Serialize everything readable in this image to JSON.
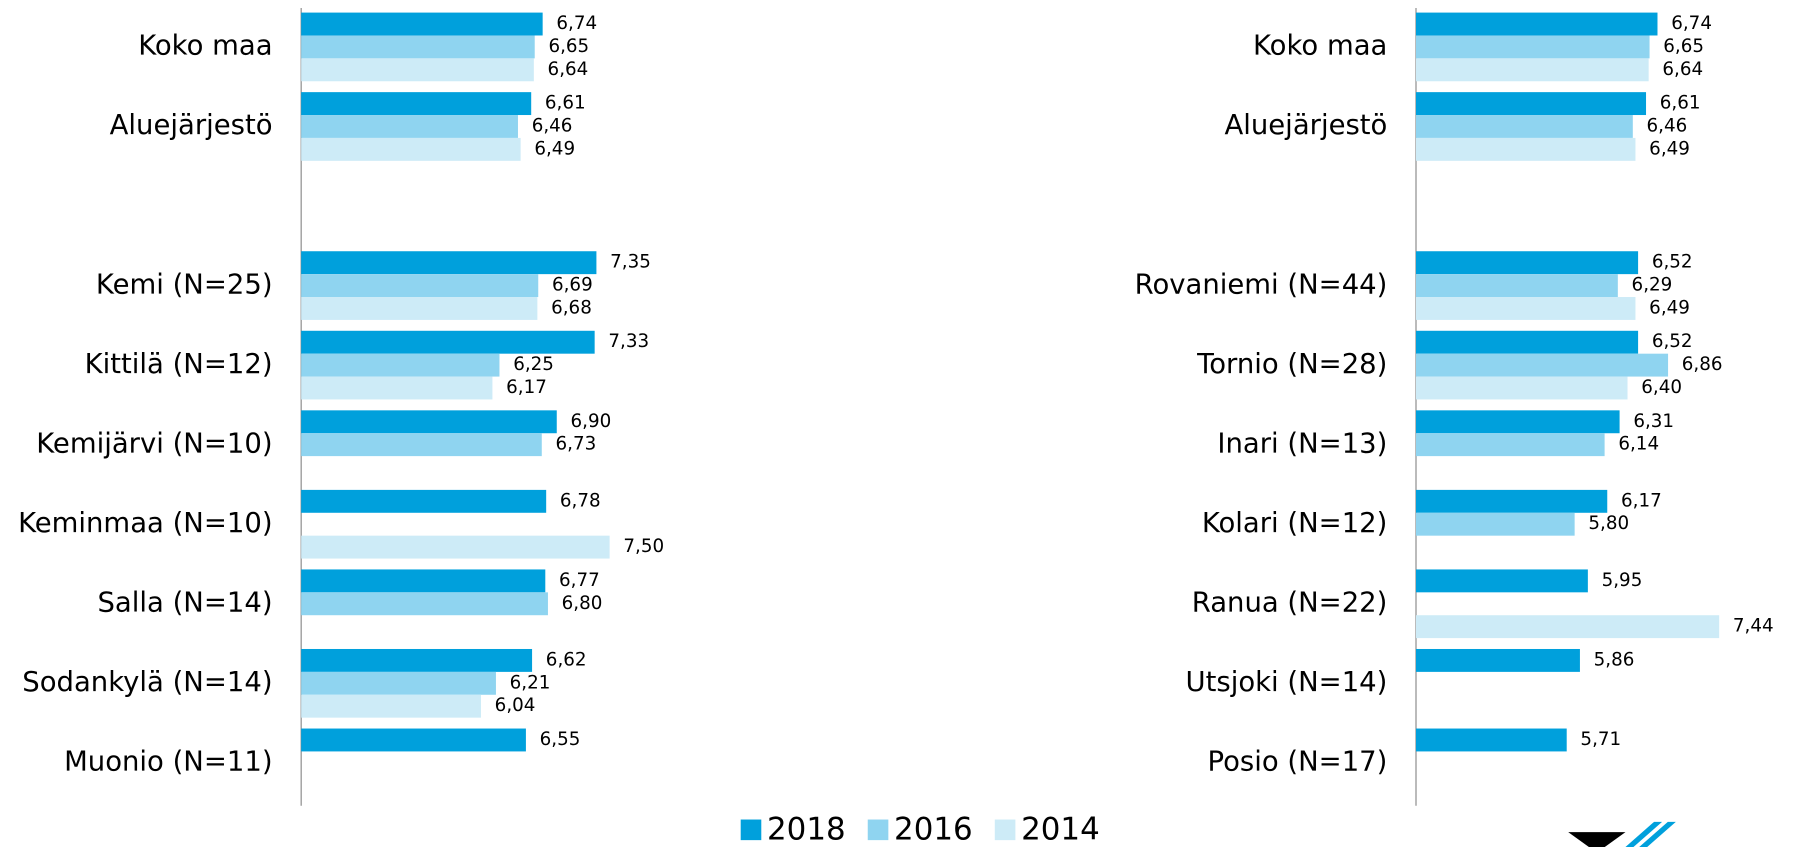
{
  "chart_data": [
    {
      "type": "bar",
      "orientation": "horizontal",
      "categories": [
        "Koko maa",
        "Aluejärjestö",
        null,
        "Kemi (N=25)",
        "Kittilä (N=12)",
        "Kemijärvi (N=10)",
        "Keminmaa (N=10)",
        "Salla (N=14)",
        "Sodankylä (N=14)",
        "Muonio (N=11)"
      ],
      "series": [
        {
          "name": "2018",
          "color": "#00a0dc",
          "values": [
            6.74,
            6.61,
            null,
            7.35,
            7.33,
            6.9,
            6.78,
            6.77,
            6.62,
            6.55
          ],
          "value_labels": [
            "6,74",
            "6,61",
            null,
            "7,35",
            "7,33",
            "6,90",
            "6,78",
            "6,77",
            "6,62",
            "6,55"
          ]
        },
        {
          "name": "2016",
          "color": "#8fd4f0",
          "values": [
            6.65,
            6.46,
            null,
            6.69,
            6.25,
            6.73,
            null,
            6.8,
            6.21,
            null
          ],
          "value_labels": [
            "6,65",
            "6,46",
            null,
            "6,69",
            "6,25",
            "6,73",
            null,
            "6,80",
            "6,21",
            null
          ]
        },
        {
          "name": "2014",
          "color": "#cdebf7",
          "values": [
            6.64,
            6.49,
            null,
            6.68,
            6.17,
            null,
            7.5,
            null,
            6.04,
            null
          ],
          "value_labels": [
            "6,64",
            "6,49",
            null,
            "6,68",
            "6,17",
            null,
            "7,50",
            null,
            "6,04",
            null
          ]
        }
      ],
      "xlim": [
        4,
        10
      ],
      "legend": "bottom"
    },
    {
      "type": "bar",
      "orientation": "horizontal",
      "categories": [
        "Koko maa",
        "Aluejärjestö",
        null,
        "Rovaniemi (N=44)",
        "Tornio (N=28)",
        "Inari (N=13)",
        "Kolari (N=12)",
        "Ranua (N=22)",
        "Utsjoki (N=14)",
        "Posio (N=17)"
      ],
      "series": [
        {
          "name": "2018",
          "color": "#00a0dc",
          "values": [
            6.74,
            6.61,
            null,
            6.52,
            6.52,
            6.31,
            6.17,
            5.95,
            5.86,
            5.71
          ],
          "value_labels": [
            "6,74",
            "6,61",
            null,
            "6,52",
            "6,52",
            "6,31",
            "6,17",
            "5,95",
            "5,86",
            "5,71"
          ]
        },
        {
          "name": "2016",
          "color": "#8fd4f0",
          "values": [
            6.65,
            6.46,
            null,
            6.29,
            6.86,
            6.14,
            5.8,
            null,
            null,
            null
          ],
          "value_labels": [
            "6,65",
            "6,46",
            null,
            "6,29",
            "6,86",
            "6,14",
            "5,80",
            null,
            null,
            null
          ]
        },
        {
          "name": "2014",
          "color": "#cdebf7",
          "values": [
            6.64,
            6.49,
            null,
            6.49,
            6.4,
            null,
            null,
            7.44,
            null,
            null
          ],
          "value_labels": [
            "6,64",
            "6,49",
            null,
            "6,49",
            "6,40",
            null,
            null,
            "7,44",
            null,
            null
          ]
        }
      ],
      "xlim": [
        4,
        10
      ]
    }
  ]
}
